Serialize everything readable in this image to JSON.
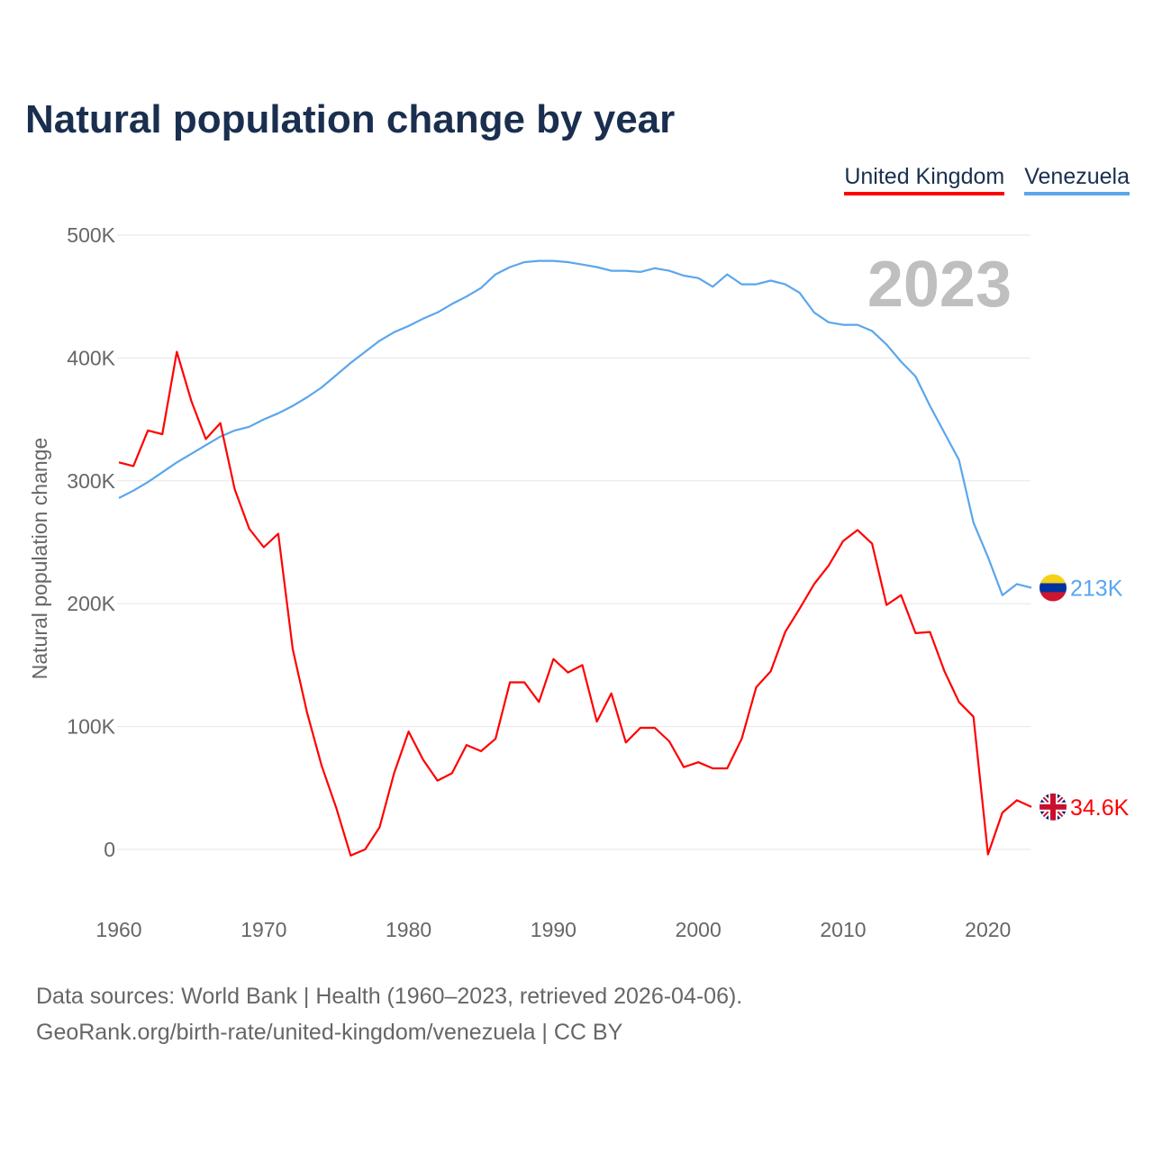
{
  "chart_data": {
    "type": "line",
    "title": "Natural population change by year",
    "xlabel": "",
    "ylabel": "Natural population change",
    "xlim": [
      1960,
      2023
    ],
    "ylim": [
      -50000,
      500000
    ],
    "x_ticks": [
      1960,
      1970,
      1980,
      1990,
      2000,
      2010,
      2020
    ],
    "x_tick_labels": [
      "1960",
      "1970",
      "1980",
      "1990",
      "2000",
      "2010",
      "2020"
    ],
    "y_ticks": [
      0,
      100000,
      200000,
      300000,
      400000,
      500000
    ],
    "y_tick_labels": [
      "0",
      "100K",
      "200K",
      "300K",
      "400K",
      "500K"
    ],
    "grid": true,
    "legend_placement": "top-right",
    "year_label": "2023",
    "x": [
      1960,
      1961,
      1962,
      1963,
      1964,
      1965,
      1966,
      1967,
      1968,
      1969,
      1970,
      1971,
      1972,
      1973,
      1974,
      1975,
      1976,
      1977,
      1978,
      1979,
      1980,
      1981,
      1982,
      1983,
      1984,
      1985,
      1986,
      1987,
      1988,
      1989,
      1990,
      1991,
      1992,
      1993,
      1994,
      1995,
      1996,
      1997,
      1998,
      1999,
      2000,
      2001,
      2002,
      2003,
      2004,
      2005,
      2006,
      2007,
      2008,
      2009,
      2010,
      2011,
      2012,
      2013,
      2014,
      2015,
      2016,
      2017,
      2018,
      2019,
      2020,
      2021,
      2022,
      2023
    ],
    "series": [
      {
        "name": "United Kingdom",
        "color": "#ff0000",
        "end_label": "34.6K",
        "flag": "uk-flag",
        "values": [
          315000,
          312000,
          341000,
          338000,
          405000,
          365000,
          334000,
          347000,
          293000,
          261000,
          246000,
          257000,
          163000,
          111000,
          68000,
          34000,
          -5000,
          0,
          18000,
          62000,
          96000,
          73000,
          56000,
          62000,
          85000,
          80000,
          90000,
          136000,
          136000,
          120000,
          155000,
          144000,
          150000,
          104000,
          127000,
          87000,
          99000,
          99000,
          88000,
          67000,
          71000,
          66000,
          66000,
          90000,
          132000,
          145000,
          177000,
          196000,
          216000,
          231000,
          251000,
          260000,
          249000,
          199000,
          207000,
          176000,
          177000,
          145000,
          120000,
          108000,
          -4000,
          30000,
          40000,
          34600
        ]
      },
      {
        "name": "Venezuela",
        "color": "#5ba6ec",
        "end_label": "213K",
        "flag": "venezuela-flag",
        "values": [
          286000,
          292000,
          299000,
          307000,
          315000,
          322000,
          329000,
          336000,
          341000,
          344000,
          350000,
          355000,
          361000,
          368000,
          376000,
          386000,
          396000,
          405000,
          414000,
          421000,
          426000,
          432000,
          437000,
          444000,
          450000,
          457000,
          468000,
          474000,
          478000,
          479000,
          479000,
          478000,
          476000,
          474000,
          471000,
          471000,
          470000,
          473000,
          471000,
          467000,
          465000,
          458000,
          468000,
          460000,
          460000,
          463000,
          460000,
          453000,
          437000,
          429000,
          427000,
          427000,
          422000,
          411000,
          397000,
          385000,
          361000,
          339000,
          317000,
          266000,
          238000,
          207000,
          216000,
          213000
        ]
      }
    ]
  },
  "footer": {
    "line1": "Data sources: World Bank | Health (1960–2023, retrieved 2026-04-06).",
    "line2": "GeoRank.org/birth-rate/united-kingdom/venezuela | CC BY"
  }
}
